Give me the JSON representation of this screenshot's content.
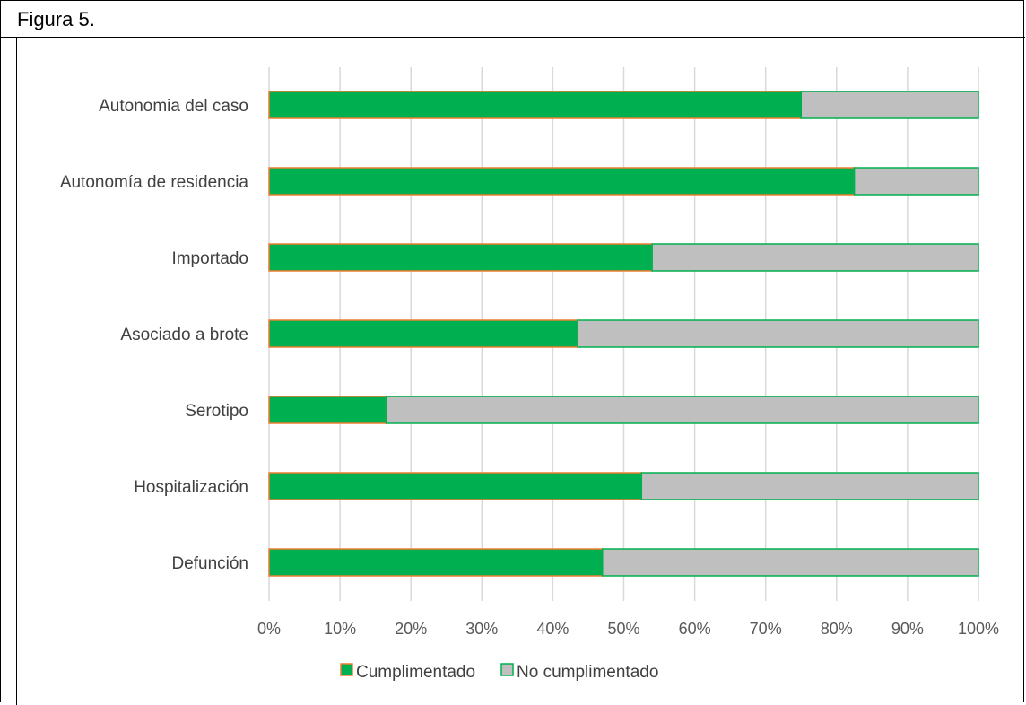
{
  "figure": {
    "title": "Figura 5."
  },
  "chart_data": {
    "type": "bar",
    "orientation": "horizontal",
    "stacked": "percent",
    "categories": [
      "Autonomia del caso",
      "Autonomía de residencia",
      "Importado",
      "Asociado a brote",
      "Serotipo",
      "Hospitalización",
      "Defunción"
    ],
    "series": [
      {
        "name": "Cumplimentado",
        "color": "#00b050",
        "values": [
          75,
          82.5,
          54,
          43.5,
          16.5,
          52.5,
          47
        ]
      },
      {
        "name": "No cumplimentado",
        "color": "#bfbfbf",
        "values": [
          25,
          17.5,
          46,
          56.5,
          83.5,
          47.5,
          53
        ]
      }
    ],
    "x_ticks": [
      "0%",
      "10%",
      "20%",
      "30%",
      "40%",
      "50%",
      "60%",
      "70%",
      "80%",
      "90%",
      "100%"
    ],
    "xlim": [
      0,
      100
    ],
    "grid": "vertical",
    "legend": "bottom"
  }
}
